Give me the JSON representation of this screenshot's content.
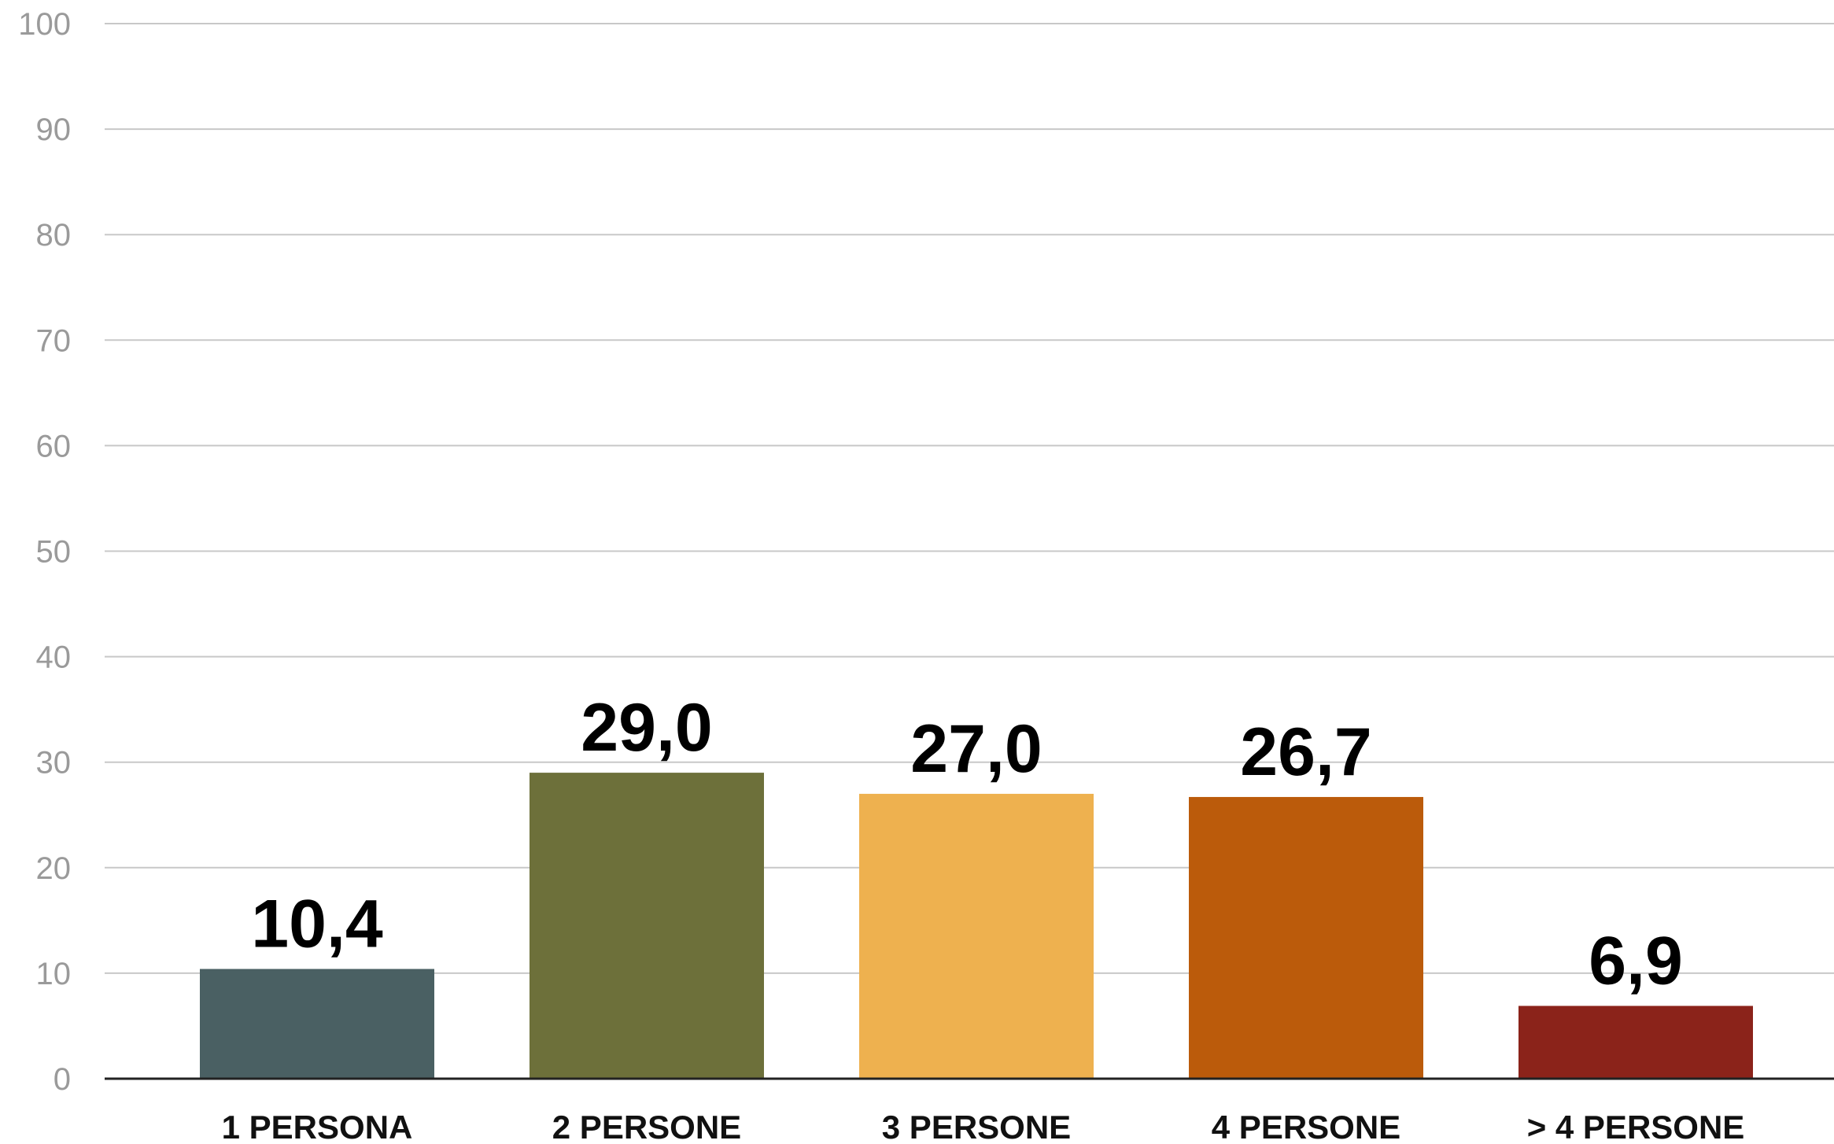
{
  "chart_data": {
    "type": "bar",
    "categories": [
      "1 PERSONA",
      "2 PERSONE",
      "3 PERSONE",
      "4 PERSONE",
      "> 4 PERSONE"
    ],
    "values": [
      10.4,
      29.0,
      27.0,
      26.7,
      6.9
    ],
    "data_labels": [
      "10,4",
      "29,0",
      "27,0",
      "26,7",
      "6,9"
    ],
    "colors": [
      "#4a6063",
      "#6d703a",
      "#eeb14f",
      "#bb5b0b",
      "#8b231a"
    ],
    "ylim": [
      0,
      100
    ],
    "yticks": [
      0,
      10,
      20,
      30,
      40,
      50,
      60,
      70,
      80,
      90,
      100
    ],
    "grid": true,
    "legend": "none",
    "title": "",
    "xlabel": "",
    "ylabel": ""
  }
}
